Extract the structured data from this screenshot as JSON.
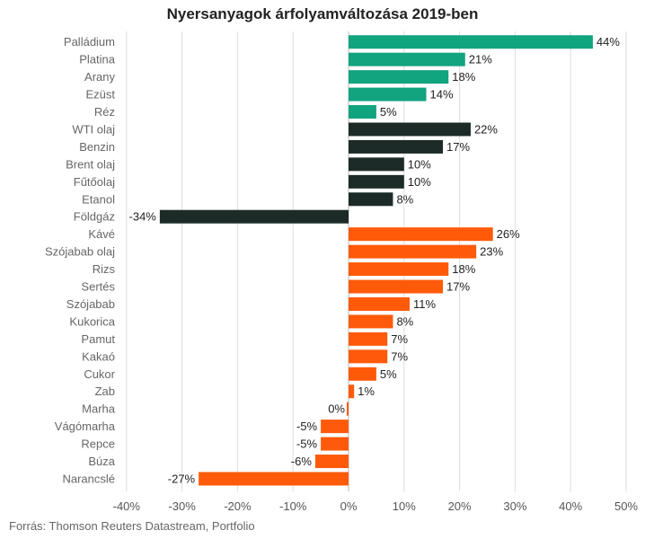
{
  "chart_data": {
    "type": "bar",
    "orientation": "horizontal",
    "title": "Nyersanyagok árfolyamváltozása 2019-ben",
    "source": "Forrás: Thomson Reuters Datastream, Portfolio",
    "xlim": [
      -40,
      50
    ],
    "xticks": [
      -40,
      -30,
      -20,
      -10,
      0,
      10,
      20,
      30,
      40,
      50
    ],
    "xtick_labels": [
      "-40%",
      "-30%",
      "-20%",
      "-10%",
      "0%",
      "10%",
      "20%",
      "30%",
      "40%",
      "50%"
    ],
    "grid": "vertical",
    "colors": {
      "metals": "#12a37f",
      "energy": "#1c2b27",
      "agri": "#ff5a0a"
    },
    "bars": [
      {
        "category": "Palládium",
        "value": 44,
        "label": "44%",
        "group": "metals"
      },
      {
        "category": "Platina",
        "value": 21,
        "label": "21%",
        "group": "metals"
      },
      {
        "category": "Arany",
        "value": 18,
        "label": "18%",
        "group": "metals"
      },
      {
        "category": "Ezüst",
        "value": 14,
        "label": "14%",
        "group": "metals"
      },
      {
        "category": "Réz",
        "value": 5,
        "label": "5%",
        "group": "metals"
      },
      {
        "category": "WTI olaj",
        "value": 22,
        "label": "22%",
        "group": "energy"
      },
      {
        "category": "Benzin",
        "value": 17,
        "label": "17%",
        "group": "energy"
      },
      {
        "category": "Brent olaj",
        "value": 10,
        "label": "10%",
        "group": "energy"
      },
      {
        "category": "Fűtőolaj",
        "value": 10,
        "label": "10%",
        "group": "energy"
      },
      {
        "category": "Etanol",
        "value": 8,
        "label": "8%",
        "group": "energy"
      },
      {
        "category": "Földgáz",
        "value": -34,
        "label": "-34%",
        "group": "energy"
      },
      {
        "category": "Kávé",
        "value": 26,
        "label": "26%",
        "group": "agri"
      },
      {
        "category": "Szójabab olaj",
        "value": 23,
        "label": "23%",
        "group": "agri"
      },
      {
        "category": "Rizs",
        "value": 18,
        "label": "18%",
        "group": "agri"
      },
      {
        "category": "Sertés",
        "value": 17,
        "label": "17%",
        "group": "agri"
      },
      {
        "category": "Szójabab",
        "value": 11,
        "label": "11%",
        "group": "agri"
      },
      {
        "category": "Kukorica",
        "value": 8,
        "label": "8%",
        "group": "agri"
      },
      {
        "category": "Pamut",
        "value": 7,
        "label": "7%",
        "group": "agri"
      },
      {
        "category": "Kakaó",
        "value": 7,
        "label": "7%",
        "group": "agri"
      },
      {
        "category": "Cukor",
        "value": 5,
        "label": "5%",
        "group": "agri"
      },
      {
        "category": "Zab",
        "value": 1,
        "label": "1%",
        "group": "agri"
      },
      {
        "category": "Marha",
        "value": 0,
        "label": "0%",
        "group": "agri"
      },
      {
        "category": "Vágómarha",
        "value": -5,
        "label": "-5%",
        "group": "agri"
      },
      {
        "category": "Repce",
        "value": -5,
        "label": "-5%",
        "group": "agri"
      },
      {
        "category": "Búza",
        "value": -6,
        "label": "-6%",
        "group": "agri"
      },
      {
        "category": "Narancslé",
        "value": -27,
        "label": "-27%",
        "group": "agri"
      }
    ]
  }
}
